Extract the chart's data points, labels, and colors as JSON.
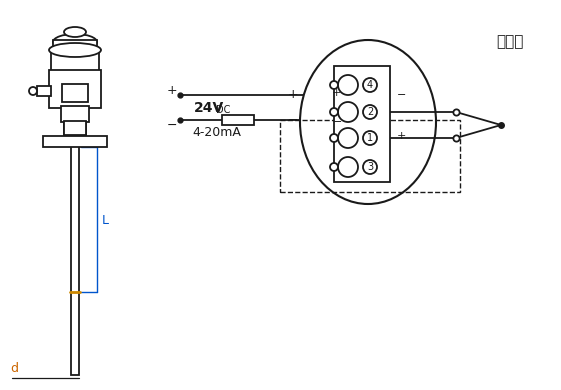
{
  "bg_color": "#ffffff",
  "line_color": "#1a1a1a",
  "dim_color_L": "#0055cc",
  "dim_color_d": "#cc6600",
  "title_text": "热电偶",
  "label_24V": "24V",
  "label_DC": "DC",
  "label_4_20mA": "4-20mA",
  "label_L": "L",
  "label_d": "d",
  "terminal_labels": [
    "4",
    "2",
    "1",
    "3"
  ],
  "fig_width": 5.61,
  "fig_height": 3.9,
  "dpi": 100
}
